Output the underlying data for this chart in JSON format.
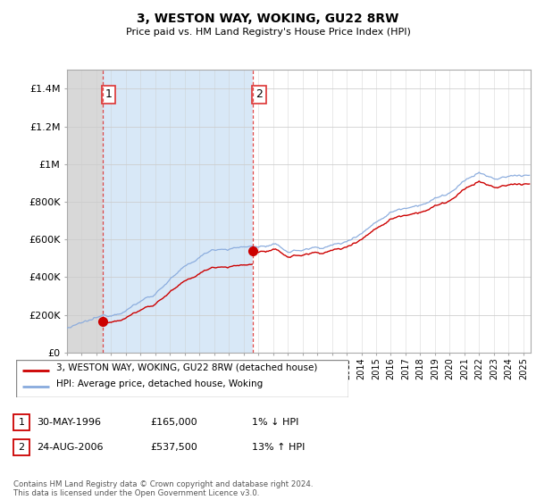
{
  "title": "3, WESTON WAY, WOKING, GU22 8RW",
  "subtitle": "Price paid vs. HM Land Registry's House Price Index (HPI)",
  "legend_line1": "3, WESTON WAY, WOKING, GU22 8RW (detached house)",
  "legend_line2": "HPI: Average price, detached house, Woking",
  "transaction1_date": "30-MAY-1996",
  "transaction1_price": "£165,000",
  "transaction1_hpi": "1% ↓ HPI",
  "transaction2_date": "24-AUG-2006",
  "transaction2_price": "£537,500",
  "transaction2_hpi": "13% ↑ HPI",
  "footer": "Contains HM Land Registry data © Crown copyright and database right 2024.\nThis data is licensed under the Open Government Licence v3.0.",
  "price_color": "#cc0000",
  "hpi_color": "#88aadd",
  "vline_color": "#dd3333",
  "ylim": [
    0,
    1500000
  ],
  "yticks": [
    0,
    200000,
    400000,
    600000,
    800000,
    1000000,
    1200000,
    1400000
  ],
  "ytick_labels": [
    "£0",
    "£200K",
    "£400K",
    "£600K",
    "£800K",
    "£1M",
    "£1.2M",
    "£1.4M"
  ],
  "xmin": 1994,
  "xmax": 2025.5,
  "transaction1_year": 1996.42,
  "transaction1_value": 165000,
  "transaction2_year": 2006.65,
  "transaction2_value": 537500
}
